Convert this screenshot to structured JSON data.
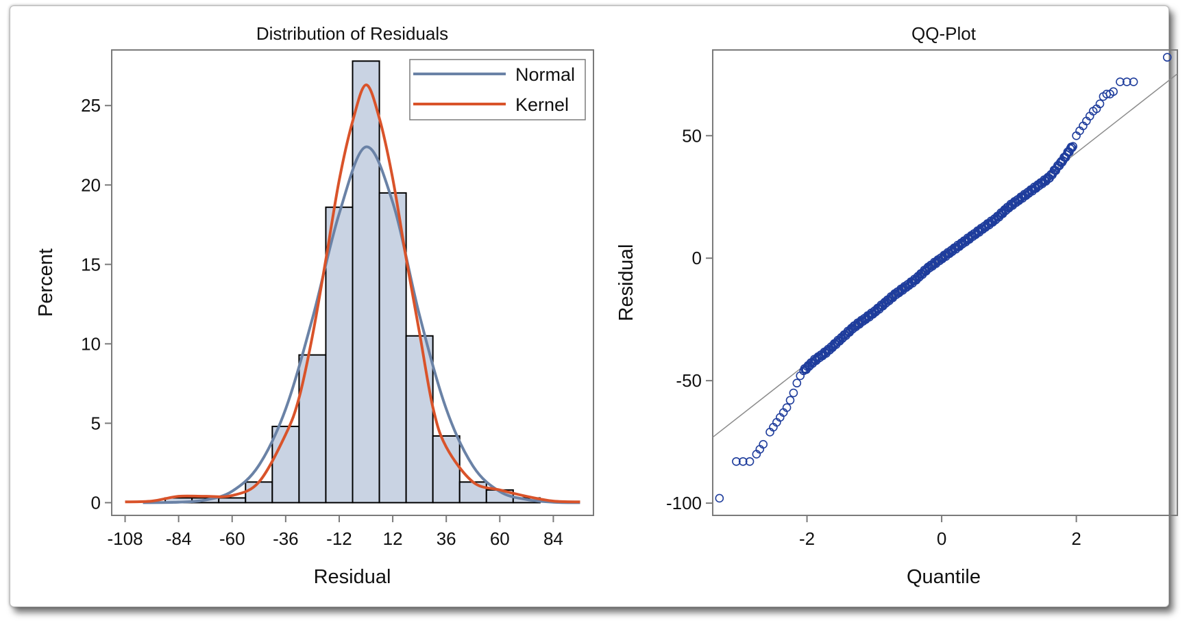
{
  "colors": {
    "bar_fill": "#c9d3e3",
    "bar_edge": "#000000",
    "normal_curve": "#6a82a6",
    "kernel_curve": "#d9532a",
    "qq_marker": "#1f3d9c",
    "qq_line": "#8c8c8c",
    "axis": "#7a7a7a"
  },
  "chart_data": [
    {
      "type": "bar",
      "title": "Distribution of Residuals",
      "xlabel": "Residual",
      "ylabel": "Percent",
      "xlim": [
        -114,
        102
      ],
      "ylim": [
        -0.8,
        28.5
      ],
      "xticks": [
        "-108",
        "-84",
        "-60",
        "-36",
        "-12",
        "12",
        "36",
        "60",
        "84"
      ],
      "yticks": [
        "0",
        "5",
        "10",
        "15",
        "20",
        "25"
      ],
      "bin_width": 12,
      "bin_centers": [
        -96,
        -84,
        -72,
        -60,
        -48,
        -36,
        -24,
        -12,
        0,
        12,
        24,
        36,
        48,
        60,
        72
      ],
      "values": [
        0,
        0.3,
        0.3,
        0.3,
        1.3,
        4.8,
        9.3,
        18.6,
        27.8,
        19.5,
        10.5,
        4.2,
        1.3,
        0.8,
        0.3
      ],
      "legend": {
        "position": "top-right",
        "entries": [
          "Normal",
          "Kernel"
        ]
      },
      "series": [
        {
          "name": "Normal",
          "x": [
            -100,
            -84,
            -72,
            -60,
            -48,
            -36,
            -24,
            -12,
            0,
            12,
            24,
            36,
            48,
            60,
            72,
            84,
            96
          ],
          "values": [
            0,
            0.03,
            0.17,
            0.72,
            2.35,
            5.9,
            11.6,
            18.2,
            22.4,
            18.9,
            11.8,
            5.9,
            2.3,
            0.7,
            0.2,
            0.03,
            0
          ]
        },
        {
          "name": "Kernel",
          "x": [
            -108,
            -96,
            -84,
            -72,
            -60,
            -48,
            -36,
            -30,
            -24,
            -18,
            -12,
            -6,
            0,
            6,
            12,
            18,
            24,
            30,
            36,
            48,
            60,
            72,
            84,
            96
          ],
          "values": [
            0.05,
            0.1,
            0.4,
            0.4,
            0.45,
            1.3,
            4.3,
            6.6,
            10.5,
            15.3,
            20.3,
            24.0,
            26.3,
            24.2,
            20.4,
            15.4,
            10.7,
            6.0,
            3.5,
            1.3,
            0.8,
            0.4,
            0.1,
            0.05
          ]
        }
      ]
    },
    {
      "type": "scatter",
      "title": "QQ-Plot",
      "xlabel": "Quantile",
      "ylabel": "Residual",
      "xlim": [
        -3.4,
        3.5
      ],
      "ylim": [
        -105,
        85
      ],
      "xticks": [
        "-2",
        "0",
        "2"
      ],
      "yticks": [
        "-100",
        "-50",
        "0",
        "50"
      ],
      "reference_line": {
        "slope": 21.5,
        "intercept": 0
      },
      "outlier_points": [
        [
          -3.3,
          -98
        ],
        [
          -3.05,
          -83
        ],
        [
          -2.95,
          -83
        ],
        [
          -2.85,
          -83
        ],
        [
          -2.75,
          -80
        ],
        [
          -2.7,
          -78
        ],
        [
          -2.65,
          -76
        ],
        [
          -2.55,
          -71
        ],
        [
          -2.5,
          -69
        ],
        [
          -2.45,
          -67
        ],
        [
          -2.4,
          -65
        ],
        [
          -2.35,
          -63
        ],
        [
          -2.3,
          -61
        ],
        [
          -2.25,
          -58
        ],
        [
          -2.2,
          -55
        ],
        [
          -2.15,
          -51
        ],
        [
          -2.1,
          -48
        ],
        [
          2.0,
          50
        ],
        [
          2.05,
          52
        ],
        [
          2.1,
          54
        ],
        [
          2.15,
          56
        ],
        [
          2.2,
          58
        ],
        [
          2.25,
          60
        ],
        [
          2.3,
          61
        ],
        [
          2.35,
          63
        ],
        [
          2.4,
          66
        ],
        [
          2.45,
          67
        ],
        [
          2.5,
          67
        ],
        [
          2.55,
          68
        ],
        [
          2.65,
          72
        ],
        [
          2.75,
          72
        ],
        [
          2.85,
          72
        ],
        [
          3.35,
          82
        ]
      ],
      "body_segments": [
        [
          -2.05,
          -46
        ],
        [
          -1.9,
          -42
        ],
        [
          -1.7,
          -38
        ],
        [
          -1.5,
          -33
        ],
        [
          -1.3,
          -28
        ],
        [
          -1.0,
          -22
        ],
        [
          -0.7,
          -15
        ],
        [
          -0.4,
          -9
        ],
        [
          -0.2,
          -4
        ],
        [
          0,
          0
        ],
        [
          0.2,
          4
        ],
        [
          0.4,
          8
        ],
        [
          0.6,
          12
        ],
        [
          0.8,
          16
        ],
        [
          1.0,
          21
        ],
        [
          1.2,
          25
        ],
        [
          1.4,
          29
        ],
        [
          1.6,
          33
        ],
        [
          1.8,
          40
        ],
        [
          1.95,
          46
        ]
      ],
      "body_point_count": 300
    }
  ]
}
